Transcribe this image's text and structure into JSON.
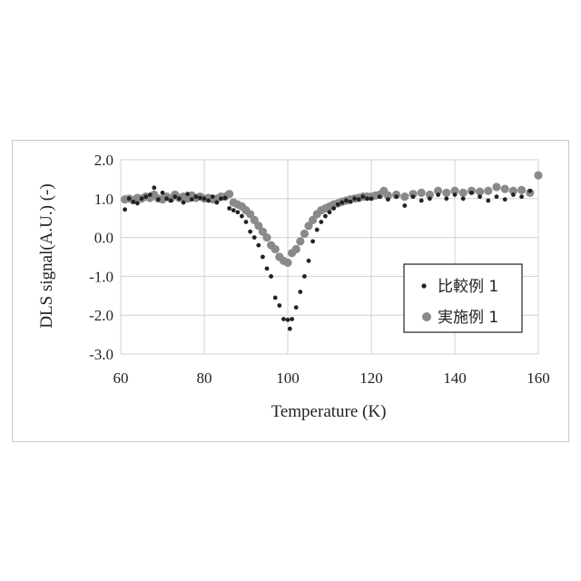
{
  "chart_data": {
    "type": "scatter",
    "title": "",
    "xlabel": "Temperature (K)",
    "ylabel": "DLS signal(A.U.) (-)",
    "xlim": [
      60,
      160
    ],
    "ylim": [
      -3.0,
      2.0
    ],
    "xticks": [
      "60",
      "80",
      "100",
      "120",
      "140",
      "160"
    ],
    "yticks": [
      "2.0",
      "1.0",
      "0.0",
      "-1.0",
      "-2.0",
      "-3.0"
    ],
    "grid": true,
    "legend_position": "right-middle",
    "series": [
      {
        "name": "比較例 1",
        "color": "#222222",
        "marker": "small-dot",
        "points": [
          [
            61,
            0.72
          ],
          [
            62,
            1.0
          ],
          [
            63,
            0.92
          ],
          [
            64,
            0.88
          ],
          [
            65,
            1.0
          ],
          [
            66,
            1.05
          ],
          [
            67,
            1.1
          ],
          [
            68,
            1.28
          ],
          [
            69,
            0.98
          ],
          [
            70,
            1.15
          ],
          [
            71,
            1.0
          ],
          [
            72,
            0.95
          ],
          [
            73,
            1.05
          ],
          [
            74,
            1.0
          ],
          [
            75,
            0.9
          ],
          [
            76,
            1.12
          ],
          [
            77,
            0.98
          ],
          [
            78,
            1.05
          ],
          [
            79,
            1.02
          ],
          [
            80,
            1.0
          ],
          [
            81,
            0.95
          ],
          [
            82,
            1.05
          ],
          [
            83,
            0.9
          ],
          [
            84,
            1.0
          ],
          [
            85,
            1.02
          ],
          [
            86,
            0.75
          ],
          [
            87,
            0.7
          ],
          [
            88,
            0.65
          ],
          [
            89,
            0.55
          ],
          [
            90,
            0.4
          ],
          [
            91,
            0.15
          ],
          [
            92,
            0.0
          ],
          [
            93,
            -0.2
          ],
          [
            94,
            -0.5
          ],
          [
            95,
            -0.8
          ],
          [
            96,
            -1.0
          ],
          [
            97,
            -1.55
          ],
          [
            98,
            -1.75
          ],
          [
            99,
            -2.1
          ],
          [
            100,
            -2.12
          ],
          [
            100.5,
            -2.35
          ],
          [
            101,
            -2.1
          ],
          [
            102,
            -1.8
          ],
          [
            103,
            -1.4
          ],
          [
            104,
            -1.0
          ],
          [
            105,
            -0.6
          ],
          [
            106,
            -0.1
          ],
          [
            107,
            0.2
          ],
          [
            108,
            0.4
          ],
          [
            109,
            0.55
          ],
          [
            110,
            0.65
          ],
          [
            111,
            0.75
          ],
          [
            112,
            0.85
          ],
          [
            113,
            0.9
          ],
          [
            114,
            0.95
          ],
          [
            115,
            0.92
          ],
          [
            116,
            1.0
          ],
          [
            117,
            0.98
          ],
          [
            118,
            1.05
          ],
          [
            119,
            1.0
          ],
          [
            120,
            1.0
          ],
          [
            122,
            1.05
          ],
          [
            124,
            0.98
          ],
          [
            126,
            1.05
          ],
          [
            128,
            0.82
          ],
          [
            130,
            1.05
          ],
          [
            132,
            0.95
          ],
          [
            134,
            1.0
          ],
          [
            136,
            1.1
          ],
          [
            138,
            1.0
          ],
          [
            140,
            1.1
          ],
          [
            142,
            1.0
          ],
          [
            144,
            1.15
          ],
          [
            146,
            1.05
          ],
          [
            148,
            0.95
          ],
          [
            150,
            1.05
          ],
          [
            152,
            0.98
          ],
          [
            154,
            1.1
          ],
          [
            156,
            1.05
          ],
          [
            158,
            1.2
          ]
        ]
      },
      {
        "name": "実施例 1",
        "color": "#8a8a8a",
        "marker": "large-dot",
        "points": [
          [
            61,
            0.98
          ],
          [
            62,
            1.0
          ],
          [
            63,
            0.96
          ],
          [
            64,
            1.02
          ],
          [
            65,
            1.0
          ],
          [
            66,
            1.05
          ],
          [
            67,
            1.02
          ],
          [
            68,
            1.1
          ],
          [
            69,
            1.0
          ],
          [
            70,
            0.98
          ],
          [
            71,
            1.05
          ],
          [
            72,
            1.0
          ],
          [
            73,
            1.1
          ],
          [
            74,
            1.02
          ],
          [
            75,
            1.05
          ],
          [
            76,
            1.0
          ],
          [
            77,
            1.08
          ],
          [
            78,
            1.02
          ],
          [
            79,
            1.05
          ],
          [
            80,
            1.0
          ],
          [
            81,
            1.02
          ],
          [
            82,
            0.98
          ],
          [
            83,
            1.0
          ],
          [
            84,
            1.05
          ],
          [
            85,
            1.05
          ],
          [
            86,
            1.12
          ],
          [
            87,
            0.9
          ],
          [
            88,
            0.85
          ],
          [
            89,
            0.8
          ],
          [
            90,
            0.7
          ],
          [
            91,
            0.6
          ],
          [
            92,
            0.45
          ],
          [
            93,
            0.3
          ],
          [
            94,
            0.15
          ],
          [
            95,
            0.0
          ],
          [
            96,
            -0.2
          ],
          [
            97,
            -0.3
          ],
          [
            98,
            -0.5
          ],
          [
            99,
            -0.6
          ],
          [
            100,
            -0.65
          ],
          [
            101,
            -0.4
          ],
          [
            102,
            -0.3
          ],
          [
            103,
            -0.1
          ],
          [
            104,
            0.1
          ],
          [
            105,
            0.3
          ],
          [
            106,
            0.45
          ],
          [
            107,
            0.6
          ],
          [
            108,
            0.7
          ],
          [
            109,
            0.75
          ],
          [
            110,
            0.8
          ],
          [
            111,
            0.85
          ],
          [
            112,
            0.88
          ],
          [
            113,
            0.92
          ],
          [
            114,
            0.95
          ],
          [
            115,
            0.98
          ],
          [
            116,
            1.0
          ],
          [
            117,
            1.02
          ],
          [
            118,
            1.05
          ],
          [
            119,
            1.05
          ],
          [
            120,
            1.05
          ],
          [
            121,
            1.08
          ],
          [
            122,
            1.1
          ],
          [
            123,
            1.2
          ],
          [
            124,
            1.08
          ],
          [
            126,
            1.1
          ],
          [
            128,
            1.05
          ],
          [
            130,
            1.12
          ],
          [
            132,
            1.15
          ],
          [
            134,
            1.1
          ],
          [
            136,
            1.2
          ],
          [
            138,
            1.15
          ],
          [
            140,
            1.2
          ],
          [
            142,
            1.15
          ],
          [
            144,
            1.2
          ],
          [
            146,
            1.18
          ],
          [
            148,
            1.2
          ],
          [
            150,
            1.3
          ],
          [
            152,
            1.25
          ],
          [
            154,
            1.2
          ],
          [
            156,
            1.22
          ],
          [
            158,
            1.15
          ],
          [
            160,
            1.6
          ]
        ]
      }
    ]
  }
}
